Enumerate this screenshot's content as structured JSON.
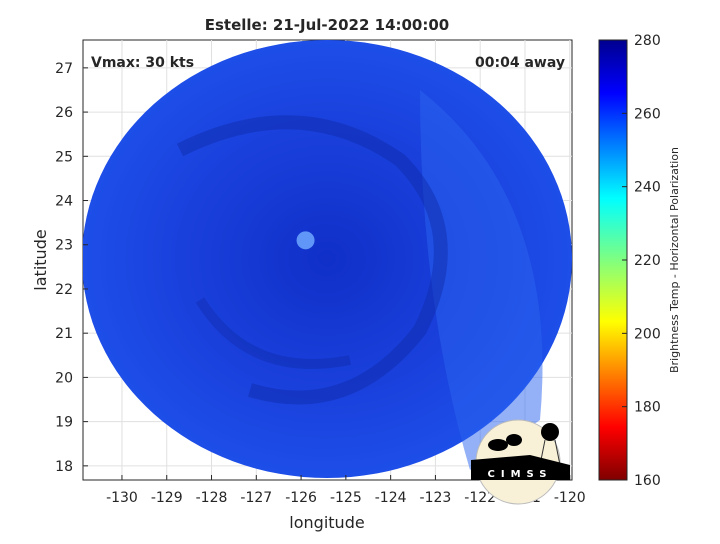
{
  "chart_data": {
    "type": "heatmap",
    "title": "Estelle: 21-Jul-2022 14:00:00",
    "xlabel": "longitude",
    "ylabel": "latitude",
    "xlim": [
      -130.87,
      -119.95
    ],
    "ylim": [
      17.68,
      27.63
    ],
    "xticks": [
      -130,
      -129,
      -128,
      -127,
      -126,
      -125,
      -124,
      -123,
      -122,
      -121,
      -120
    ],
    "yticks": [
      18,
      19,
      20,
      21,
      22,
      23,
      24,
      25,
      26,
      27
    ],
    "grid": true,
    "annotations": {
      "left": "Vmax: 30 kts",
      "right": "00:04 away"
    },
    "colorbar": {
      "label": "Brightness Temp - Horizontal Polarization",
      "range": [
        160,
        280
      ],
      "ticks": [
        160,
        180,
        200,
        220,
        240,
        260,
        280
      ],
      "colormap": "jet",
      "location": "right"
    },
    "bright_spot": {
      "lon": -125.9,
      "lat": 23.1,
      "value": 240
    },
    "background_value": 265
  },
  "logo": {
    "text": "CIMSS"
  }
}
